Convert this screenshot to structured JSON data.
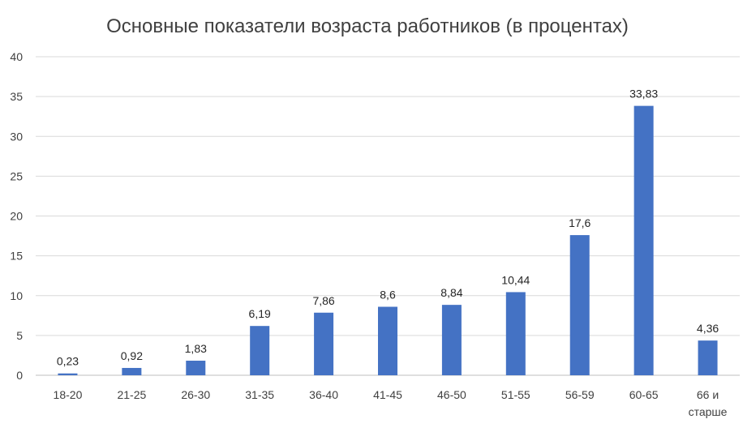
{
  "chart_data": {
    "type": "bar",
    "title": "Основные показатели возраста работников (в процентах)",
    "xlabel": "",
    "ylabel": "",
    "ylim": [
      0,
      40
    ],
    "yticks": [
      "0",
      "5",
      "10",
      "15",
      "20",
      "25",
      "30",
      "35",
      "40"
    ],
    "categories": [
      "18-20",
      "21-25",
      "26-30",
      "31-35",
      "36-40",
      "41-45",
      "46-50",
      "51-55",
      "56-59",
      "60-65",
      "66 и старше"
    ],
    "values": [
      0.23,
      0.92,
      1.83,
      6.19,
      7.86,
      8.6,
      8.84,
      10.44,
      17.6,
      33.83,
      4.36
    ],
    "value_labels": [
      "0,23",
      "0,92",
      "1,83",
      "6,19",
      "7,86",
      "8,6",
      "8,84",
      "10,44",
      "17,6",
      "33,83",
      "4,36"
    ],
    "bar_color": "#4472c4",
    "grid": true,
    "legend": "none"
  }
}
